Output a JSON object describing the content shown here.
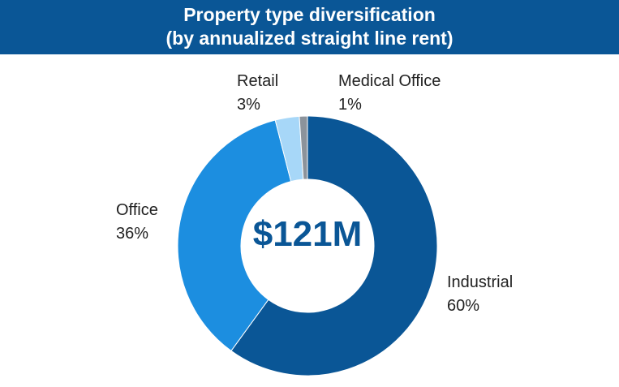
{
  "header": {
    "title_line1": "Property type diversification",
    "title_line2": "(by annualized straight line rent)"
  },
  "chart_data": {
    "type": "pie",
    "subtype": "donut",
    "title": "Property type diversification (by annualized straight line rent)",
    "center_label": "$121M",
    "slices": [
      {
        "name": "Industrial",
        "value": 60,
        "label": "60%",
        "color": "#0a5696"
      },
      {
        "name": "Office",
        "value": 36,
        "label": "36%",
        "color": "#1c8ee0"
      },
      {
        "name": "Retail",
        "value": 3,
        "label": "3%",
        "color": "#a7d7f8"
      },
      {
        "name": "Medical Office",
        "value": 1,
        "label": "1%",
        "color": "#8c939b"
      }
    ]
  }
}
